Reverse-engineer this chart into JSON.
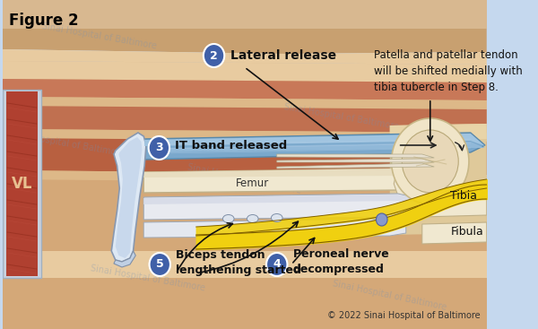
{
  "bg_color": "#c5d8ee",
  "title": "Figure 2",
  "copyright": "© 2022 Sinai Hospital of Baltimore",
  "watermark": "Sinai Hospital of Baltimore",
  "labels": {
    "lateral_release": "Lateral release",
    "it_band": "IT band released",
    "femur": "Femur",
    "tibia": "Tibia",
    "fibula": "Fibula",
    "vl": "VL",
    "peroneal": "Peroneal nerve\ndecompressed",
    "biceps": "Biceps tendon\nlengthening started",
    "patella_note": "Patella and patellar tendon\nwill be shifted medially with\ntibia tubercle in Step 8."
  },
  "circle_color": "#4060a8",
  "circle_text_color": "#ffffff"
}
